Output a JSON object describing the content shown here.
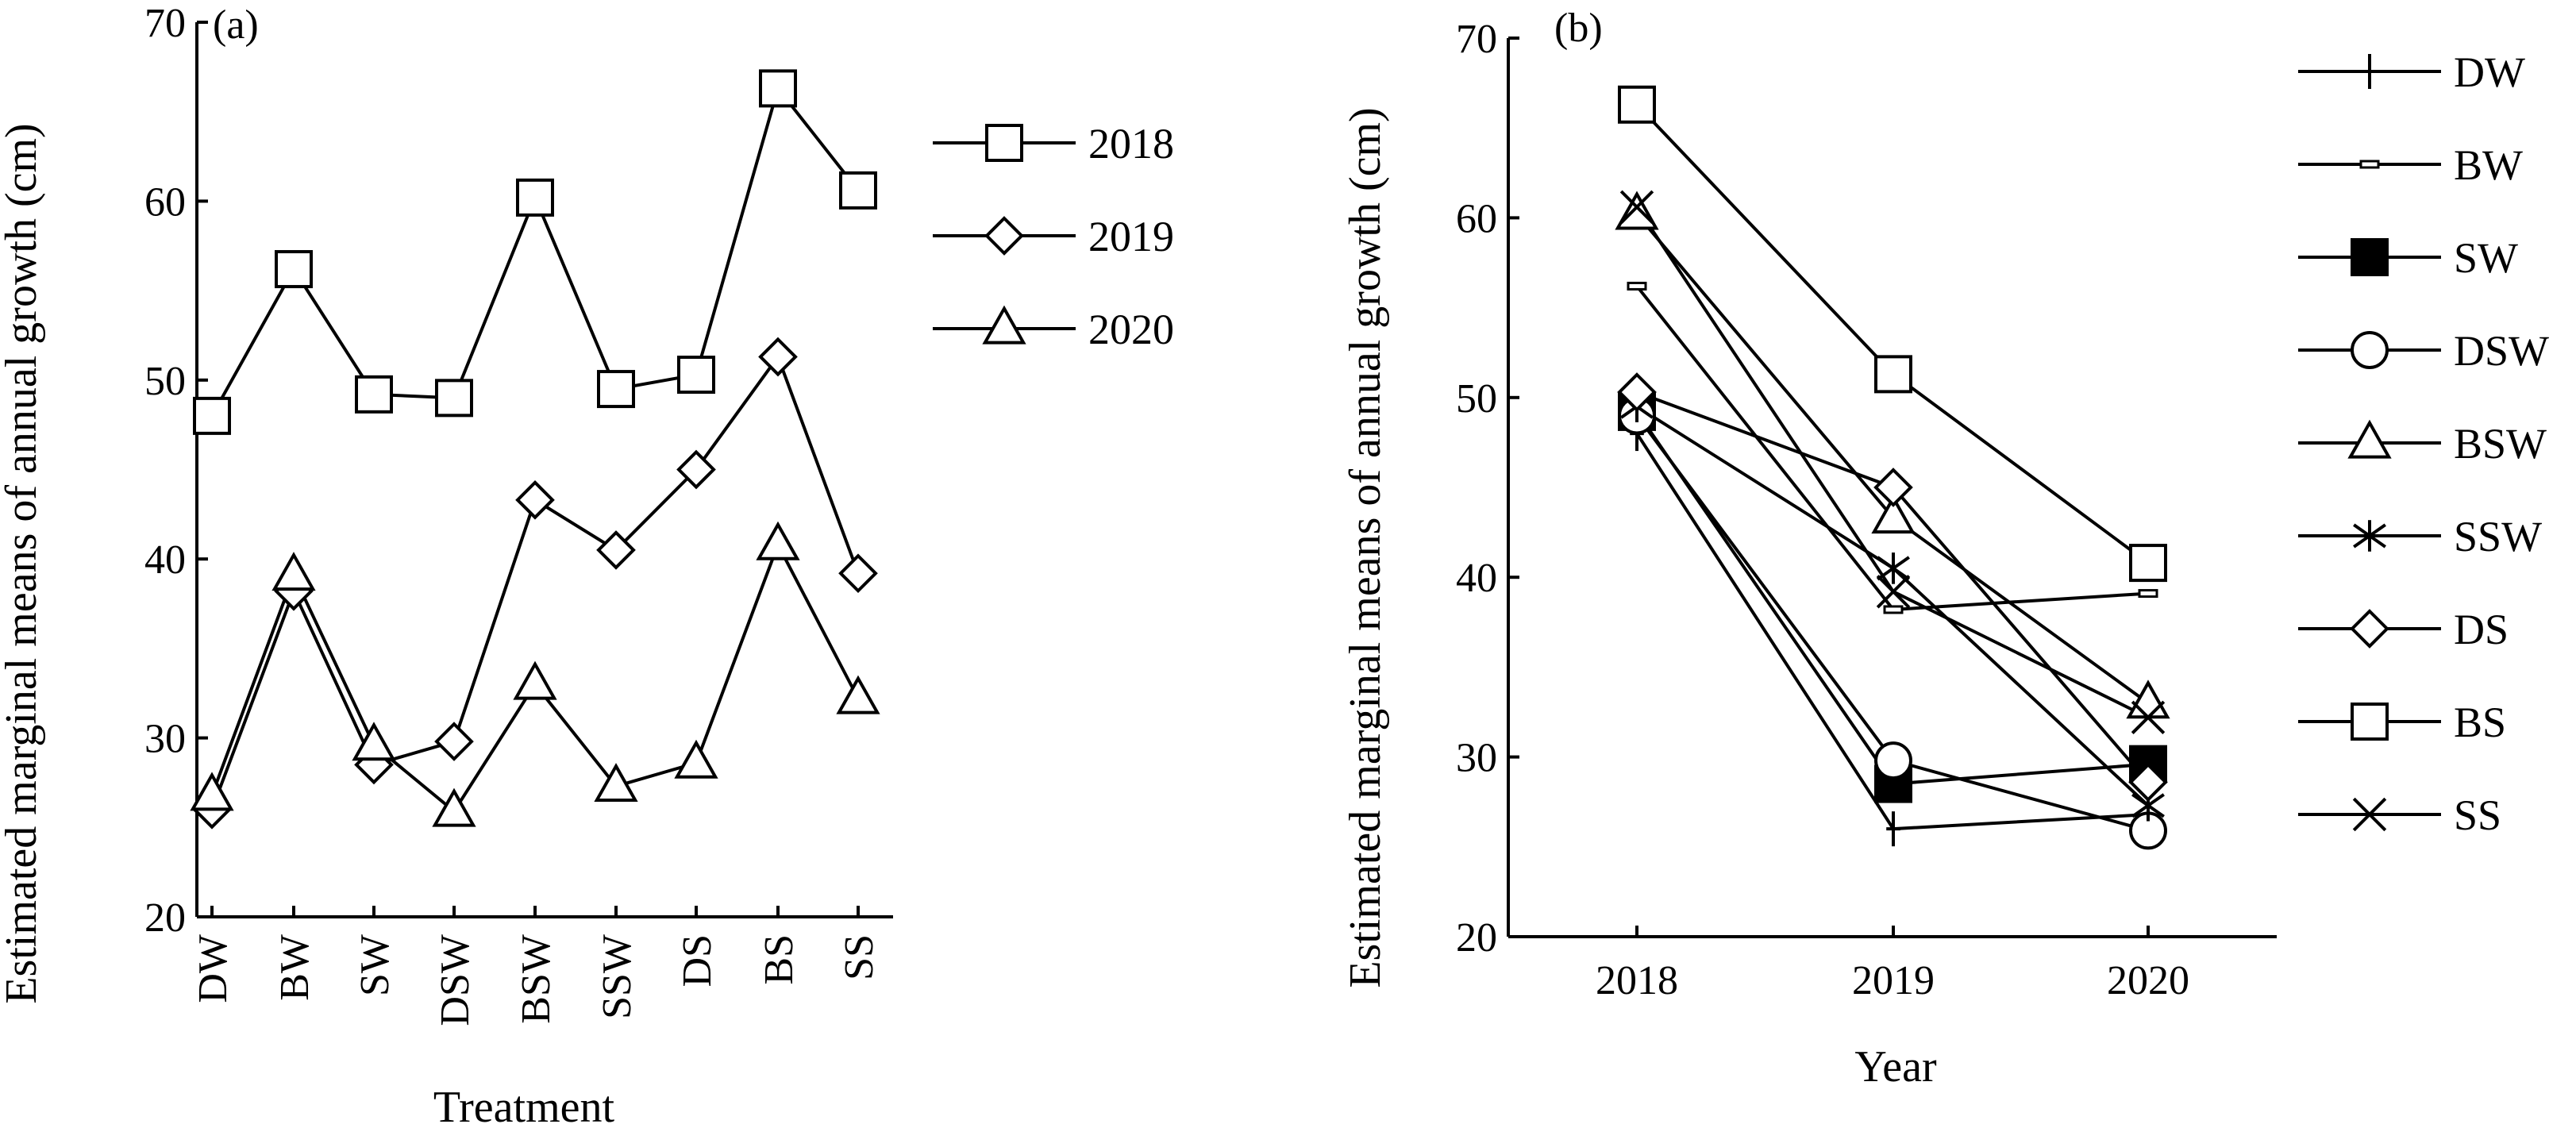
{
  "chart_data": [
    {
      "type": "line",
      "panel_label": "(a)",
      "xlabel": "Treatment",
      "ylabel": "Estimated marginal means of annual growth (cm)",
      "ylim": [
        20,
        70
      ],
      "yticks": [
        20,
        30,
        40,
        50,
        60,
        70
      ],
      "categories": [
        "DW",
        "BW",
        "SW",
        "DSW",
        "BSW",
        "SSW",
        "DS",
        "BS",
        "SS"
      ],
      "legend_position": "right",
      "series": [
        {
          "name": "2018",
          "marker": "square",
          "values": [
            48.0,
            56.2,
            49.2,
            49.0,
            60.2,
            49.5,
            50.3,
            66.3,
            60.6
          ]
        },
        {
          "name": "2019",
          "marker": "diamond",
          "values": [
            26.0,
            38.2,
            28.5,
            29.8,
            43.3,
            40.5,
            45.0,
            51.3,
            39.2
          ]
        },
        {
          "name": "2020",
          "marker": "triangle",
          "values": [
            26.8,
            39.1,
            29.6,
            25.9,
            33.0,
            27.3,
            28.6,
            40.8,
            32.2
          ]
        }
      ]
    },
    {
      "type": "line",
      "panel_label": "(b)",
      "xlabel": "Year",
      "ylabel": "Estimated marginal means of annual growth (cm)",
      "ylim": [
        20,
        70
      ],
      "yticks": [
        20,
        30,
        40,
        50,
        60,
        70
      ],
      "categories": [
        "2018",
        "2019",
        "2020"
      ],
      "legend_position": "right",
      "series": [
        {
          "name": "DW",
          "marker": "plus",
          "values": [
            48.0,
            26.0,
            26.8
          ]
        },
        {
          "name": "BW",
          "marker": "dash",
          "values": [
            56.2,
            38.2,
            39.1
          ]
        },
        {
          "name": "SW",
          "marker": "filled-square",
          "values": [
            49.2,
            28.5,
            29.6
          ]
        },
        {
          "name": "DSW",
          "marker": "circle",
          "values": [
            49.0,
            29.8,
            25.9
          ]
        },
        {
          "name": "BSW",
          "marker": "triangle",
          "values": [
            60.2,
            43.3,
            33.0
          ]
        },
        {
          "name": "SSW",
          "marker": "star",
          "values": [
            49.5,
            40.5,
            27.3
          ]
        },
        {
          "name": "DS",
          "marker": "diamond",
          "values": [
            50.3,
            45.0,
            28.6
          ]
        },
        {
          "name": "BS",
          "marker": "square",
          "values": [
            66.3,
            51.3,
            40.8
          ]
        },
        {
          "name": "SS",
          "marker": "x",
          "values": [
            60.6,
            39.2,
            32.2
          ]
        }
      ]
    }
  ]
}
